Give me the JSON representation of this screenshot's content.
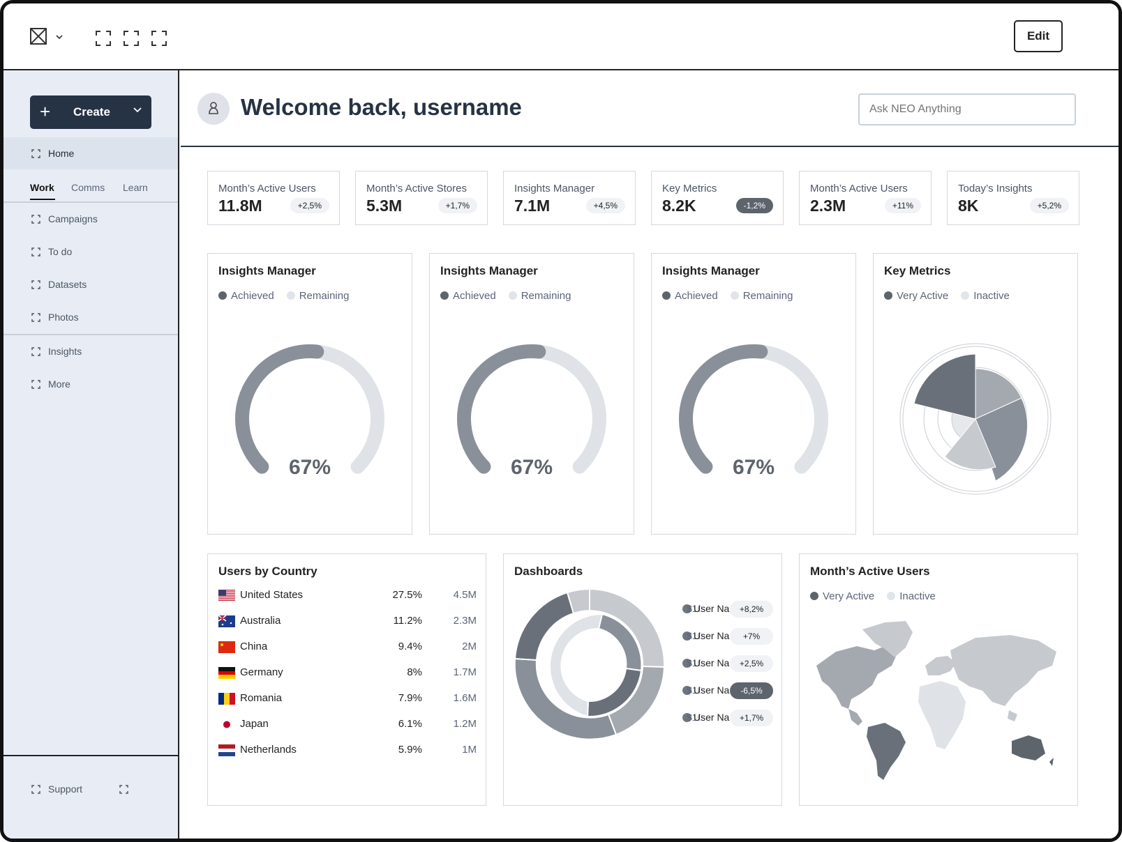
{
  "topbar": {
    "logo_icon": "x-box-logo-icon",
    "chevron_icon": "chevron-down-icon",
    "placeholder_icons": [
      "frame-icon",
      "frame-icon",
      "frame-icon"
    ],
    "edit_label": "Edit"
  },
  "sidebar": {
    "create_label": "Create",
    "home_label": "Home",
    "tabs": [
      "Work",
      "Comms",
      "Learn"
    ],
    "items": [
      "Campaigns",
      "To do",
      "Datasets",
      "Photos"
    ],
    "items2": [
      "Insights",
      "More"
    ],
    "support_label": "Support"
  },
  "header": {
    "welcome": "Welcome back, username",
    "ask_placeholder": "Ask NEO Anything"
  },
  "stats": [
    {
      "title": "Month’s Active Users",
      "value": "11.8M",
      "change": "+2,5%",
      "negative": false
    },
    {
      "title": "Month’s Active Stores",
      "value": "5.3M",
      "change": "+1,7%",
      "negative": false
    },
    {
      "title": "Insights Manager",
      "value": "7.1M",
      "change": "+4,5%",
      "negative": false
    },
    {
      "title": "Key Metrics",
      "value": "8.2K",
      "change": "-1,2%",
      "negative": true
    },
    {
      "title": "Month’s Active Users",
      "value": "2.3M",
      "change": "+11%",
      "negative": false
    },
    {
      "title": "Today’s Insights",
      "value": "8K",
      "change": "+5,2%",
      "negative": false
    }
  ],
  "gauges": [
    {
      "title": "Insights Manager",
      "legend": [
        "Achieved",
        "Remaining"
      ],
      "percent_label": "67%"
    },
    {
      "title": "Insights Manager",
      "legend": [
        "Achieved",
        "Remaining"
      ],
      "percent_label": "67%"
    },
    {
      "title": "Insights Manager",
      "legend": [
        "Achieved",
        "Remaining"
      ],
      "percent_label": "67%"
    }
  ],
  "key_metrics": {
    "title": "Key Metrics",
    "legend": [
      "Very Active",
      "Inactive"
    ]
  },
  "countries": {
    "title": "Users by Country",
    "rows": [
      {
        "name": "United States",
        "pct": "27.5%",
        "value": "4.5M",
        "flag": "us"
      },
      {
        "name": "Australia",
        "pct": "11.2%",
        "value": "2.3M",
        "flag": "au"
      },
      {
        "name": "China",
        "pct": "9.4%",
        "value": "2M",
        "flag": "cn"
      },
      {
        "name": "Germany",
        "pct": "8%",
        "value": "1.7M",
        "flag": "de"
      },
      {
        "name": "Romania",
        "pct": "7.9%",
        "value": "1.6M",
        "flag": "ro"
      },
      {
        "name": "Japan",
        "pct": "6.1%",
        "value": "1.2M",
        "flag": "jp"
      },
      {
        "name": "Netherlands",
        "pct": "5.9%",
        "value": "1M",
        "flag": "nl"
      }
    ]
  },
  "dashboards": {
    "title": "Dashboards",
    "legend": [
      {
        "under": "$10K",
        "label": "User Na",
        "change": "+8,2%",
        "negative": false
      },
      {
        "under": "$100K",
        "label": "User Na",
        "change": "+7%",
        "negative": false
      },
      {
        "under": "$10K",
        "label": "User Na",
        "change": "+2,5%",
        "negative": false
      },
      {
        "under": "$100K",
        "label": "User Na",
        "change": "-6,5%",
        "negative": true
      },
      {
        "under": "$10K",
        "label": "User Na",
        "change": "+1,7%",
        "negative": false
      }
    ]
  },
  "map_card": {
    "title": "Month’s Active Users",
    "legend": [
      "Very Active",
      "Inactive"
    ]
  },
  "colors": {
    "dark": "#263345",
    "gray": "#8a9099",
    "light": "#dfe2e6",
    "sidebar": "#e8edf5"
  }
}
